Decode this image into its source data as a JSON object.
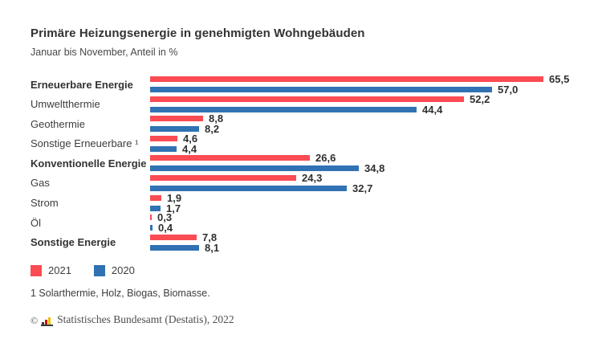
{
  "header": {
    "title": "Primäre Heizungsenergie in genehmigten Wohngebäuden",
    "subtitle": "Januar bis November, Anteil in %"
  },
  "chart_data": {
    "type": "bar",
    "orientation": "horizontal",
    "title": "Primäre Heizungsenergie in genehmigten Wohngebäuden",
    "subtitle": "Januar bis November, Anteil in %",
    "unit": "Anteil in %",
    "categories": [
      "Erneuerbare Energie",
      "Umweltthermie",
      "Geothermie",
      "Sonstige Erneuerbare ¹",
      "Konventionelle Energie",
      "Gas",
      "Strom",
      "Öl",
      "Sonstige Energie"
    ],
    "bold_categories": [
      true,
      false,
      false,
      false,
      true,
      false,
      false,
      false,
      true
    ],
    "series": [
      {
        "name": "2021",
        "color": "#fb4b53",
        "values": [
          65.5,
          52.2,
          8.8,
          4.6,
          26.6,
          24.3,
          1.9,
          0.3,
          7.8
        ]
      },
      {
        "name": "2020",
        "color": "#3072b3",
        "values": [
          57.0,
          44.4,
          8.2,
          4.4,
          34.8,
          32.7,
          1.7,
          0.4,
          8.1
        ]
      }
    ],
    "xmax": 65.5,
    "grid": false,
    "legend_position": "bottom",
    "value_label_format": "decimal-comma-1"
  },
  "footnote": "1 Solarthermie, Holz, Biogas, Biomasse.",
  "source": {
    "copyright": "©",
    "text": "Statistisches Bundesamt (Destatis), 2022",
    "logo_colors": {
      "base": "#3a3a3a",
      "bars": [
        "#3a3a3a",
        "#d10a10",
        "#f0be00"
      ]
    }
  }
}
